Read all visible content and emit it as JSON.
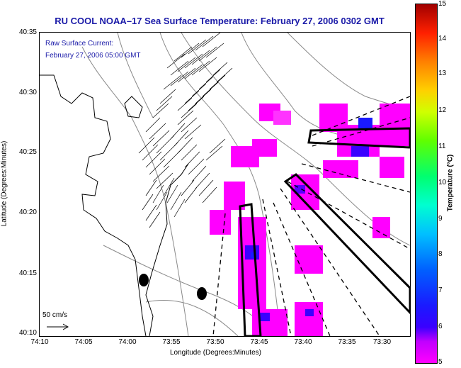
{
  "title": "RU COOL  NOAA–17  Sea Surface Temperature:  February 27, 2006 0302 GMT",
  "annotation": {
    "line1": "Raw Surface Current:",
    "line2": "February 27, 2006 05:00 GMT"
  },
  "scale_label": "50 cm/s",
  "axes": {
    "xlabel": "Longitude (Degrees:Minutes)",
    "ylabel": "Latitude (Degrees:Minutes)",
    "xticks": [
      "74:10",
      "74:05",
      "74:00",
      "73:55",
      "73:50",
      "73:45",
      "73:40",
      "73:35",
      "73:30"
    ],
    "yticks": [
      "40:35",
      "40:30",
      "40:25",
      "40:20",
      "40:15",
      "40:10"
    ]
  },
  "colorbar": {
    "title": "Temperature (°C)",
    "ticks": [
      "15",
      "14",
      "13",
      "12",
      "11",
      "10",
      "9",
      "8",
      "7",
      "6",
      "5"
    ],
    "range": [
      5,
      15
    ]
  },
  "colors": {
    "title": "#1a1aa8",
    "sst_cold": "#ff00ff",
    "sst_mid": "#1a1aff"
  },
  "icons": [
    "vector-field",
    "coastline",
    "bathymetry-contours",
    "survey-boxes"
  ]
}
